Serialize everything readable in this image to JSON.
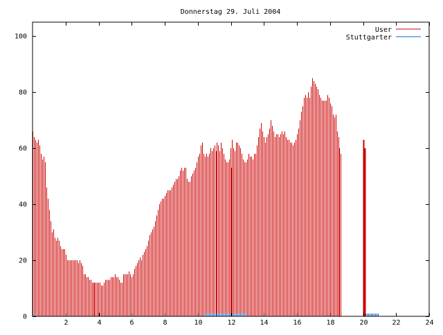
{
  "chart_data": {
    "type": "bar",
    "title": "Donnerstag 29. Juli 2004",
    "xlabel": "",
    "ylabel": "",
    "xlim": [
      0,
      24
    ],
    "ylim": [
      0,
      105
    ],
    "xticks": [
      2,
      4,
      6,
      8,
      10,
      12,
      14,
      16,
      18,
      20,
      22,
      24
    ],
    "xtick_labels": [
      "2",
      "4",
      "6",
      "8",
      "10",
      "12",
      "14",
      "16",
      "18",
      "20",
      "22",
      "24"
    ],
    "yticks": [
      0,
      20,
      40,
      60,
      80,
      100
    ],
    "ytick_labels": [
      "0",
      "20",
      "40",
      "60",
      "80",
      "100"
    ],
    "grid": false,
    "legend_position": "top-right",
    "series": [
      {
        "name": "User",
        "color": "#cc0000",
        "style": "impulses",
        "x_start": 0,
        "x_step": 0.0833,
        "values": [
          66,
          64,
          63,
          62,
          63,
          61,
          58,
          56,
          57,
          55,
          46,
          42,
          38,
          34,
          30,
          31,
          28,
          27,
          28,
          27,
          25,
          24,
          24,
          24,
          22,
          20,
          20,
          20,
          20,
          20,
          20,
          20,
          20,
          19,
          20,
          19,
          18,
          15,
          15,
          14,
          14,
          13,
          13,
          12,
          12,
          12,
          12,
          12,
          12,
          12,
          11,
          11,
          12,
          13,
          13,
          13,
          13,
          14,
          14,
          14,
          15,
          14,
          14,
          13,
          12,
          12,
          15,
          15,
          15,
          15,
          16,
          15,
          14,
          15,
          17,
          18,
          19,
          20,
          21,
          20,
          22,
          23,
          24,
          25,
          27,
          29,
          30,
          31,
          32,
          34,
          36,
          38,
          40,
          41,
          42,
          42,
          43,
          44,
          45,
          45,
          45,
          46,
          47,
          48,
          49,
          49,
          50,
          52,
          53,
          52,
          53,
          53,
          49,
          48,
          48,
          50,
          51,
          52,
          53,
          55,
          57,
          58,
          61,
          62,
          58,
          57,
          58,
          57,
          58,
          60,
          59,
          60,
          61,
          59,
          62,
          61,
          59,
          62,
          60,
          58,
          56,
          55,
          55,
          56,
          60,
          63,
          60,
          59,
          62,
          62,
          61,
          60,
          58,
          56,
          55,
          55,
          56,
          58,
          57,
          57,
          56,
          58,
          58,
          61,
          64,
          67,
          69,
          66,
          64,
          62,
          64,
          65,
          67,
          70,
          68,
          66,
          64,
          65,
          65,
          64,
          65,
          66,
          65,
          66,
          64,
          63,
          63,
          62,
          62,
          61,
          62,
          63,
          65,
          67,
          70,
          73,
          75,
          78,
          79,
          78,
          80,
          78,
          82,
          85,
          84,
          83,
          82,
          81,
          79,
          78,
          77,
          77,
          77,
          77,
          79,
          78,
          76,
          75,
          72,
          71,
          72,
          66,
          64,
          60,
          58
        ]
      },
      {
        "name": "Stuttgarter",
        "color": "#0066cc",
        "style": "impulses",
        "x_start": 0,
        "x_step": 0.0833,
        "values": [
          0,
          0,
          1,
          0,
          0,
          0,
          0,
          0,
          0,
          0,
          0,
          0,
          0,
          0,
          0,
          0,
          0,
          0,
          0,
          0,
          0,
          0,
          0,
          0,
          0,
          0,
          0,
          0,
          0,
          0,
          0,
          0,
          0,
          0,
          0,
          0,
          0,
          0,
          0,
          0,
          0,
          0,
          0,
          0,
          0,
          0,
          0,
          0,
          0,
          0,
          0,
          0,
          0,
          0,
          0,
          0,
          0,
          0,
          0,
          0,
          0,
          0,
          0,
          0,
          0,
          0,
          0,
          0,
          0,
          0,
          0,
          0,
          0,
          0,
          0,
          0,
          0,
          0,
          0,
          0,
          0,
          0,
          0,
          0,
          0,
          0,
          0,
          0,
          0,
          0,
          0,
          0,
          0,
          0,
          0,
          0,
          0,
          0,
          0,
          0,
          0,
          0,
          0,
          0,
          0,
          0,
          0,
          0,
          0,
          0,
          0,
          0,
          0,
          0,
          0,
          0,
          0,
          0,
          0,
          0,
          0,
          0,
          0,
          0,
          0,
          1,
          1,
          1,
          1,
          1,
          1,
          1,
          1,
          1,
          1,
          1,
          1,
          1,
          1,
          1,
          1,
          1,
          1,
          1,
          1,
          1,
          1,
          1,
          1,
          1,
          1,
          1,
          1,
          1,
          1,
          1,
          0,
          0,
          0,
          0,
          0,
          0,
          0,
          0,
          0,
          0,
          0,
          0,
          0,
          0,
          0,
          0,
          0,
          0,
          0,
          0,
          0,
          0,
          0,
          0,
          0,
          0,
          0,
          0,
          0,
          0,
          0,
          0,
          0,
          0,
          0,
          0,
          0,
          0,
          0,
          0,
          0,
          0,
          0,
          0,
          0,
          0,
          0,
          0,
          0,
          0,
          0,
          0,
          0,
          0,
          0,
          0,
          0,
          0,
          0,
          0,
          0,
          0,
          0,
          0,
          0,
          0,
          0,
          0,
          0,
          0,
          0,
          0,
          0,
          0,
          0,
          0,
          0,
          0,
          0,
          0,
          0,
          0,
          0,
          0,
          0,
          0,
          1,
          1,
          1,
          1,
          1,
          1,
          1,
          1,
          1,
          1
        ]
      }
    ],
    "highlights": [
      {
        "series": "User",
        "x": 12.0,
        "value": 53
      },
      {
        "series": "User",
        "x": 20.0,
        "value": 63
      },
      {
        "series": "User",
        "x": 20.1,
        "value": 60
      }
    ]
  }
}
